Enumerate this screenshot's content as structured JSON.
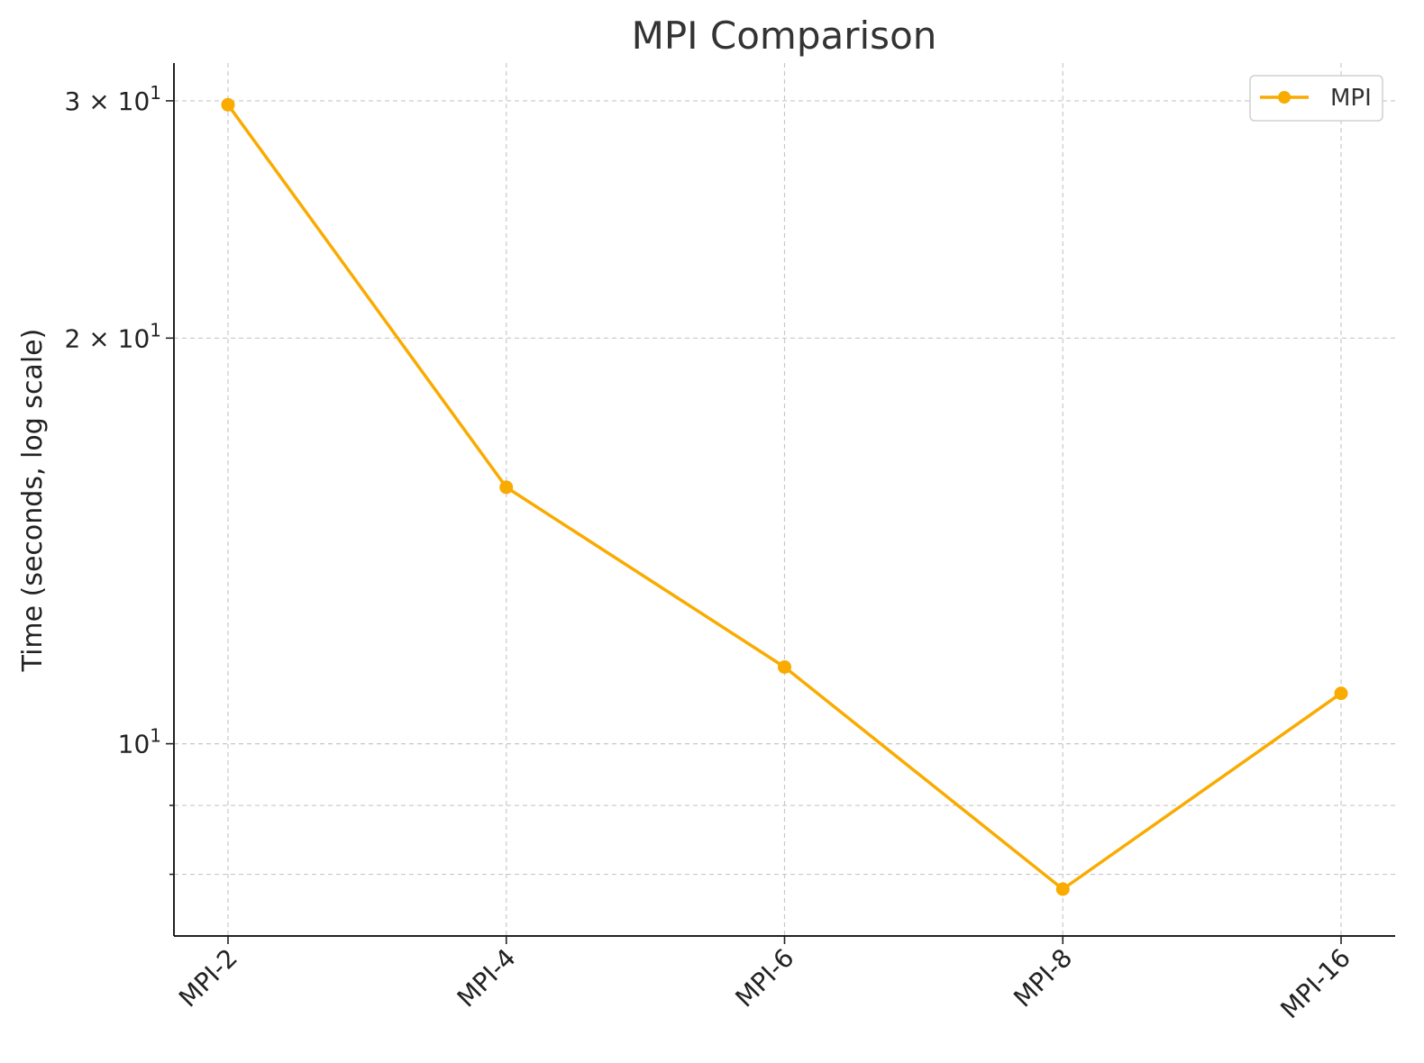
{
  "chart_data": {
    "type": "line",
    "title": "MPI Comparison",
    "xlabel": "",
    "ylabel": "Time (seconds, log scale)",
    "yscale": "log",
    "ylim": [
      7.2,
      32
    ],
    "grid": true,
    "legend_position": "top-right",
    "categories": [
      "MPI-2",
      "MPI-4",
      "MPI-6",
      "MPI-8",
      "MPI-16"
    ],
    "series": [
      {
        "name": "MPI",
        "values": [
          29.8,
          15.5,
          11.4,
          7.8,
          10.9
        ],
        "color": "#f9ab00",
        "marker": "circle"
      }
    ],
    "y_major_ticks": [
      {
        "value": 30,
        "mantissa": "3",
        "times": "×",
        "base": "10",
        "exponent": "1"
      },
      {
        "value": 20,
        "mantissa": "2",
        "times": "×",
        "base": "10",
        "exponent": "1"
      },
      {
        "value": 10,
        "mantissa": "",
        "times": "",
        "base": "10",
        "exponent": "1"
      }
    ],
    "y_minor_ticks": [
      9,
      8
    ]
  }
}
